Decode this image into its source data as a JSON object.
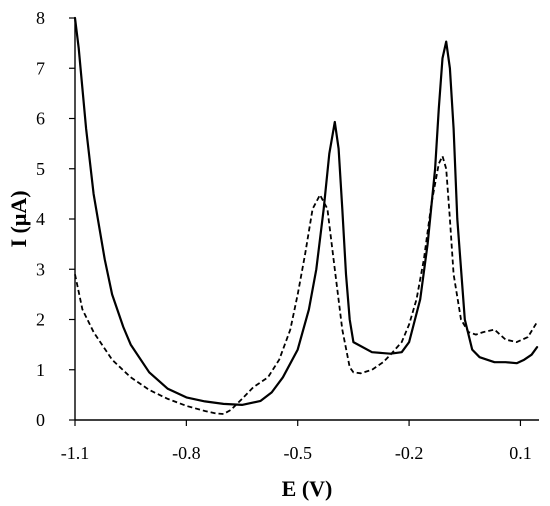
{
  "chart_data": {
    "type": "line",
    "title": "",
    "xlabel": "E (V)",
    "ylabel": "I (μA)",
    "xlim": [
      -1.1,
      0.15
    ],
    "ylim": [
      0,
      8
    ],
    "x_ticks": [
      -1.1,
      -0.8,
      -0.5,
      -0.2,
      0.1
    ],
    "x_tick_labels": [
      "-1.1",
      "-0.8",
      "-0.5",
      "-0.2",
      "0.1"
    ],
    "y_ticks": [
      0,
      1,
      2,
      3,
      4,
      5,
      6,
      7,
      8
    ],
    "y_tick_labels": [
      "0",
      "1",
      "2",
      "3",
      "4",
      "5",
      "6",
      "7",
      "8"
    ],
    "grid": false,
    "legend": "none",
    "series": [
      {
        "style": "solid",
        "x": [
          -1.1,
          -1.09,
          -1.07,
          -1.05,
          -1.02,
          -1.0,
          -0.97,
          -0.95,
          -0.9,
          -0.85,
          -0.8,
          -0.75,
          -0.7,
          -0.65,
          -0.6,
          -0.57,
          -0.54,
          -0.5,
          -0.47,
          -0.45,
          -0.43,
          -0.415,
          -0.4,
          -0.39,
          -0.38,
          -0.37,
          -0.36,
          -0.35,
          -0.3,
          -0.25,
          -0.22,
          -0.2,
          -0.17,
          -0.15,
          -0.13,
          -0.12,
          -0.11,
          -0.1,
          -0.09,
          -0.08,
          -0.07,
          -0.05,
          -0.03,
          -0.01,
          0.01,
          0.03,
          0.06,
          0.09,
          0.11,
          0.13,
          0.145
        ],
        "y": [
          8.0,
          7.4,
          5.8,
          4.5,
          3.2,
          2.5,
          1.85,
          1.5,
          0.95,
          0.62,
          0.45,
          0.37,
          0.32,
          0.3,
          0.38,
          0.55,
          0.85,
          1.4,
          2.2,
          3.0,
          4.2,
          5.3,
          5.93,
          5.4,
          4.2,
          2.9,
          2.0,
          1.55,
          1.35,
          1.32,
          1.35,
          1.55,
          2.4,
          3.5,
          5.0,
          6.2,
          7.2,
          7.53,
          7.0,
          5.8,
          4.0,
          2.0,
          1.4,
          1.25,
          1.2,
          1.15,
          1.15,
          1.13,
          1.2,
          1.3,
          1.45
        ]
      },
      {
        "style": "dashed",
        "x": [
          -1.1,
          -1.08,
          -1.05,
          -1.0,
          -0.95,
          -0.9,
          -0.85,
          -0.8,
          -0.75,
          -0.72,
          -0.7,
          -0.68,
          -0.65,
          -0.62,
          -0.58,
          -0.55,
          -0.52,
          -0.5,
          -0.48,
          -0.46,
          -0.44,
          -0.42,
          -0.4,
          -0.38,
          -0.36,
          -0.35,
          -0.33,
          -0.3,
          -0.27,
          -0.25,
          -0.22,
          -0.2,
          -0.18,
          -0.16,
          -0.14,
          -0.12,
          -0.11,
          -0.1,
          -0.09,
          -0.08,
          -0.06,
          -0.04,
          -0.02,
          0.0,
          0.03,
          0.06,
          0.09,
          0.12,
          0.145
        ],
        "y": [
          2.9,
          2.2,
          1.75,
          1.2,
          0.85,
          0.6,
          0.42,
          0.28,
          0.18,
          0.13,
          0.12,
          0.2,
          0.42,
          0.65,
          0.85,
          1.2,
          1.8,
          2.5,
          3.3,
          4.2,
          4.48,
          4.2,
          3.0,
          1.8,
          1.05,
          0.95,
          0.93,
          1.0,
          1.15,
          1.3,
          1.55,
          1.9,
          2.4,
          3.2,
          4.3,
          5.1,
          5.25,
          5.0,
          4.0,
          2.9,
          2.0,
          1.75,
          1.7,
          1.75,
          1.8,
          1.6,
          1.55,
          1.65,
          1.95
        ]
      }
    ]
  }
}
